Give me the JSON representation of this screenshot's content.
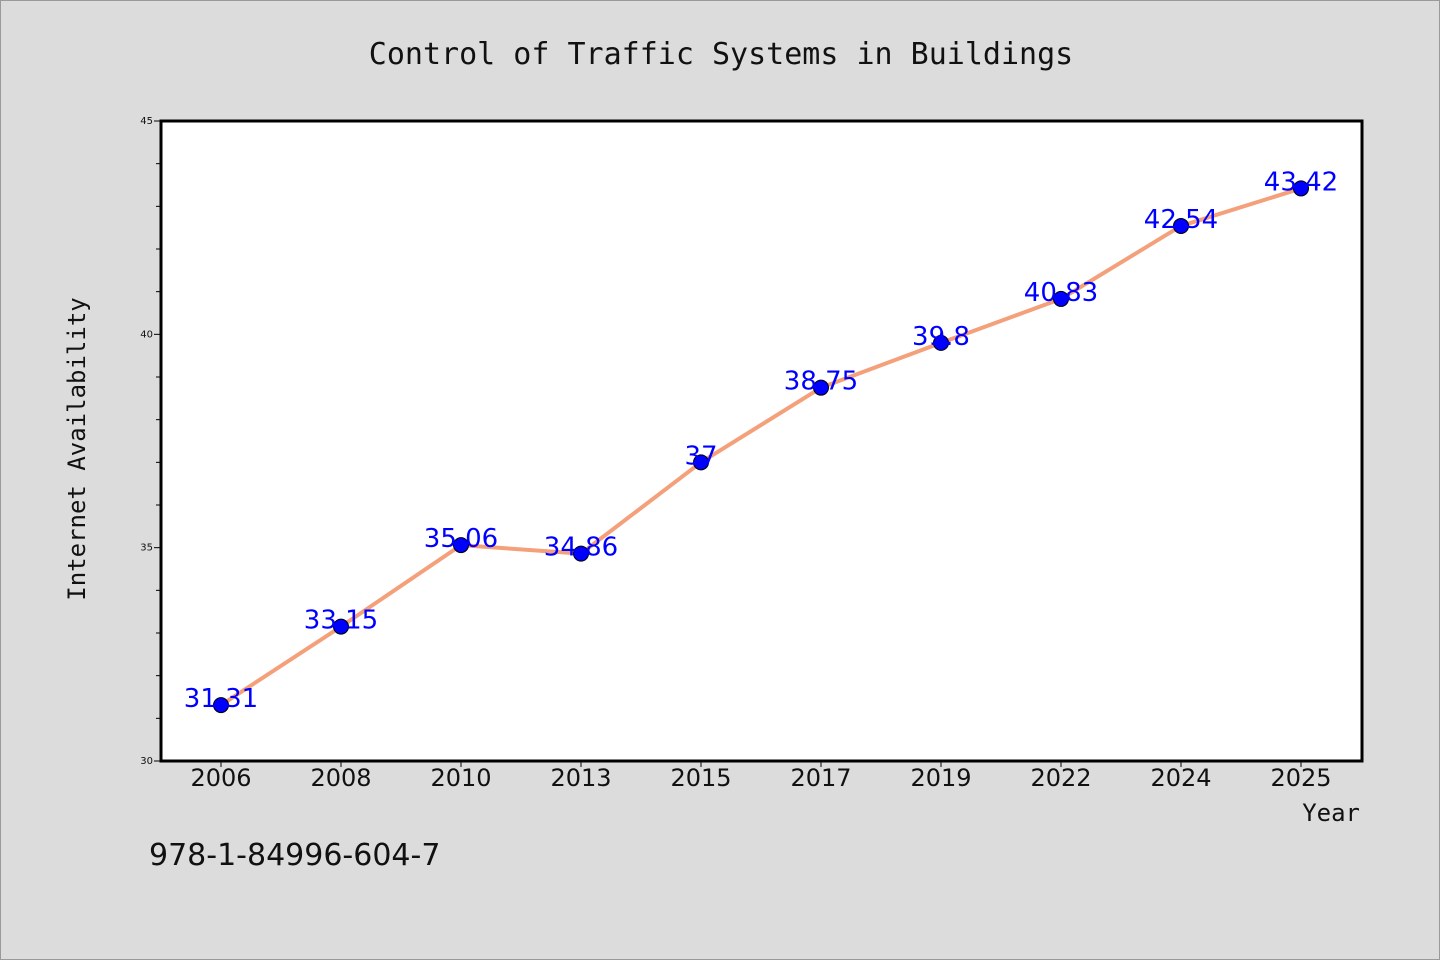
{
  "chart_data": {
    "type": "line",
    "title": "Control of Traffic Systems in Buildings",
    "xlabel": "Year",
    "ylabel": "Internet Availability",
    "categories": [
      "2006",
      "2008",
      "2010",
      "2013",
      "2015",
      "2017",
      "2019",
      "2022",
      "2024",
      "2025"
    ],
    "series": [
      {
        "values": [
          31.31,
          33.15,
          35.06,
          34.86,
          37,
          38.75,
          39.8,
          40.83,
          42.54,
          43.42
        ],
        "labels": [
          "31.31",
          "33.15",
          "35.06",
          "34.86",
          "37",
          "38.75",
          "39.8",
          "40.83",
          "42.54",
          "43.42"
        ],
        "line_color": "#f4a07a",
        "marker_color": "#0000ff",
        "label_color": "#0000ff"
      }
    ],
    "ylim": [
      30,
      45
    ],
    "yticks": [
      "30",
      "35",
      "40",
      "45"
    ],
    "grid": false,
    "legend": "none",
    "plot_background": "#ffffff",
    "figure_background": "#dcdcdc"
  },
  "footer": {
    "isbn": "978-1-84996-604-7"
  }
}
